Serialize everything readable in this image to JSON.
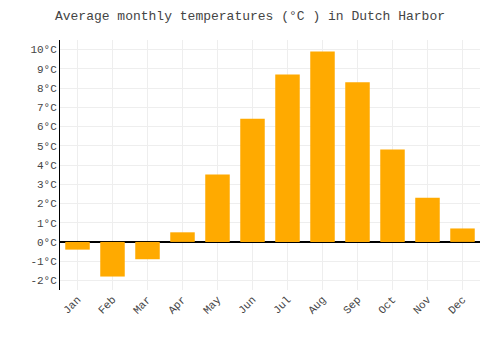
{
  "chart_data": {
    "type": "bar",
    "title": "Average monthly temperatures (°C ) in Dutch Harbor",
    "categories": [
      "Jan",
      "Feb",
      "Mar",
      "Apr",
      "May",
      "Jun",
      "Jul",
      "Aug",
      "Sep",
      "Oct",
      "Nov",
      "Dec"
    ],
    "values": [
      -0.4,
      -1.8,
      -0.9,
      0.5,
      3.5,
      6.4,
      8.7,
      9.9,
      8.3,
      4.8,
      2.3,
      0.7
    ],
    "color": "#FFAA00",
    "ylim": [
      -2.5,
      10.5
    ],
    "yticks": [
      {
        "value": -2,
        "label": "-2°C"
      },
      {
        "value": -1,
        "label": "-1°C"
      },
      {
        "value": 0,
        "label": "0°C"
      },
      {
        "value": 1,
        "label": "1°C"
      },
      {
        "value": 2,
        "label": "2°C"
      },
      {
        "value": 3,
        "label": "3°C"
      },
      {
        "value": 4,
        "label": "4°C"
      },
      {
        "value": 5,
        "label": "5°C"
      },
      {
        "value": 6,
        "label": "6°C"
      },
      {
        "value": 7,
        "label": "7°C"
      },
      {
        "value": 8,
        "label": "8°C"
      },
      {
        "value": 9,
        "label": "9°C"
      },
      {
        "value": 10,
        "label": "10°C"
      }
    ],
    "grid": true
  }
}
